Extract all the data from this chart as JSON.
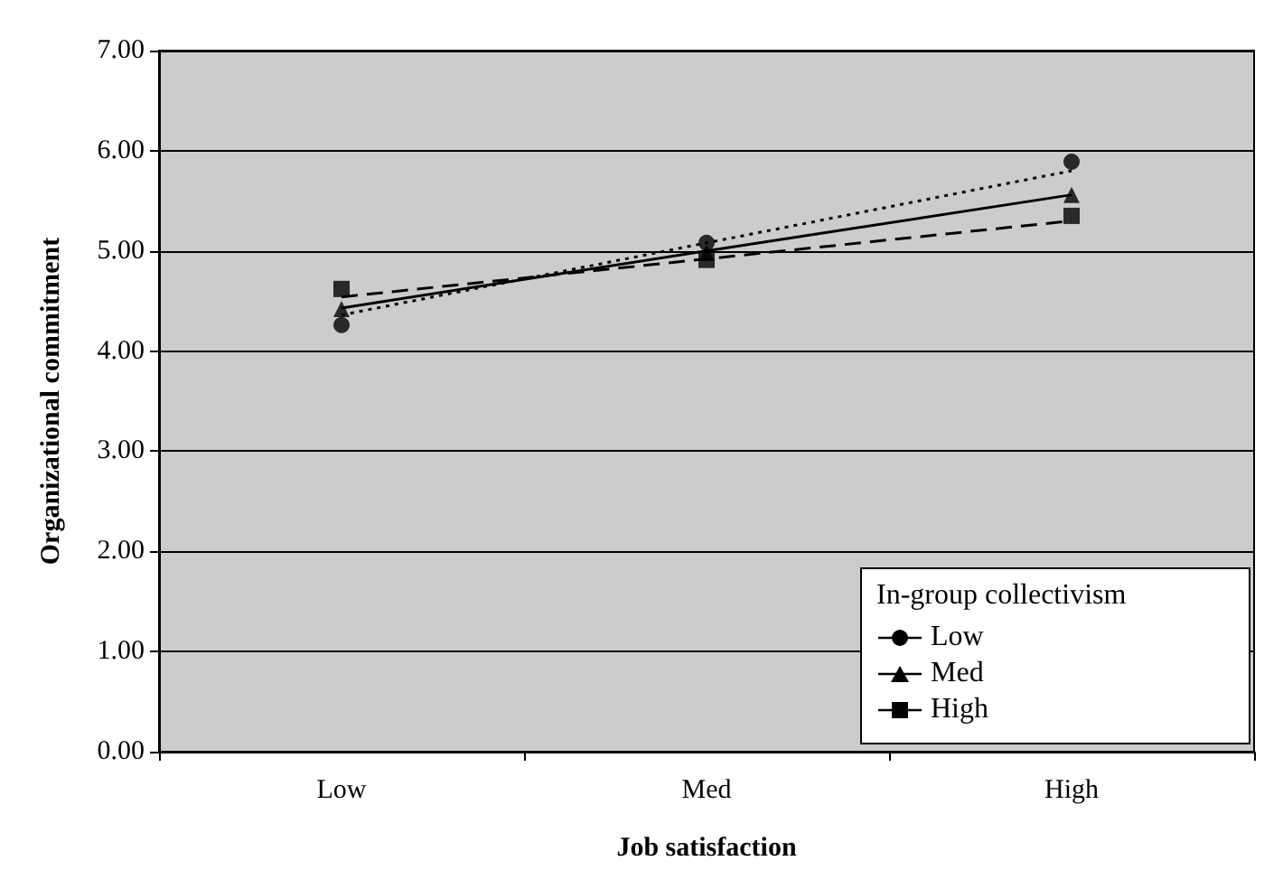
{
  "chart_data": {
    "type": "scatter",
    "xlabel": "Job satisfaction",
    "ylabel": "Organizational commitment",
    "categories": [
      "Low",
      "Med",
      "High"
    ],
    "ylim": [
      0,
      7
    ],
    "yticks": [
      {
        "value": 0,
        "label": "0.00"
      },
      {
        "value": 1,
        "label": "1.00"
      },
      {
        "value": 2,
        "label": "2.00"
      },
      {
        "value": 3,
        "label": "3.00"
      },
      {
        "value": 4,
        "label": "4.00"
      },
      {
        "value": 5,
        "label": "5.00"
      },
      {
        "value": 6,
        "label": "6.00"
      },
      {
        "value": 7,
        "label": "7.00"
      }
    ],
    "grid": "y",
    "legend": "bottom right",
    "legend_title": "In-group collectivism",
    "series": [
      {
        "name": "Low",
        "color": "#000000",
        "marker": "circle",
        "values": [
          4.26,
          5.08,
          5.89
        ]
      },
      {
        "name": "Med",
        "color": "#000000",
        "marker": "triangle",
        "values": [
          4.42,
          4.98,
          5.56
        ]
      },
      {
        "name": "High",
        "color": "#000000",
        "marker": "square",
        "values": [
          4.62,
          4.91,
          5.35
        ]
      },
      {
        "type": "line",
        "color": "#000000",
        "line_style": "dotted",
        "marker": "none",
        "values": [
          4.36,
          5.08,
          5.8
        ]
      },
      {
        "type": "line",
        "color": "#000000",
        "line_style": "solid",
        "marker": "none",
        "values": [
          4.43,
          5.0,
          5.56
        ]
      },
      {
        "type": "line",
        "color": "#000000",
        "line_style": "dashed",
        "marker": "none",
        "values": [
          4.54,
          4.92,
          5.3
        ]
      }
    ]
  }
}
